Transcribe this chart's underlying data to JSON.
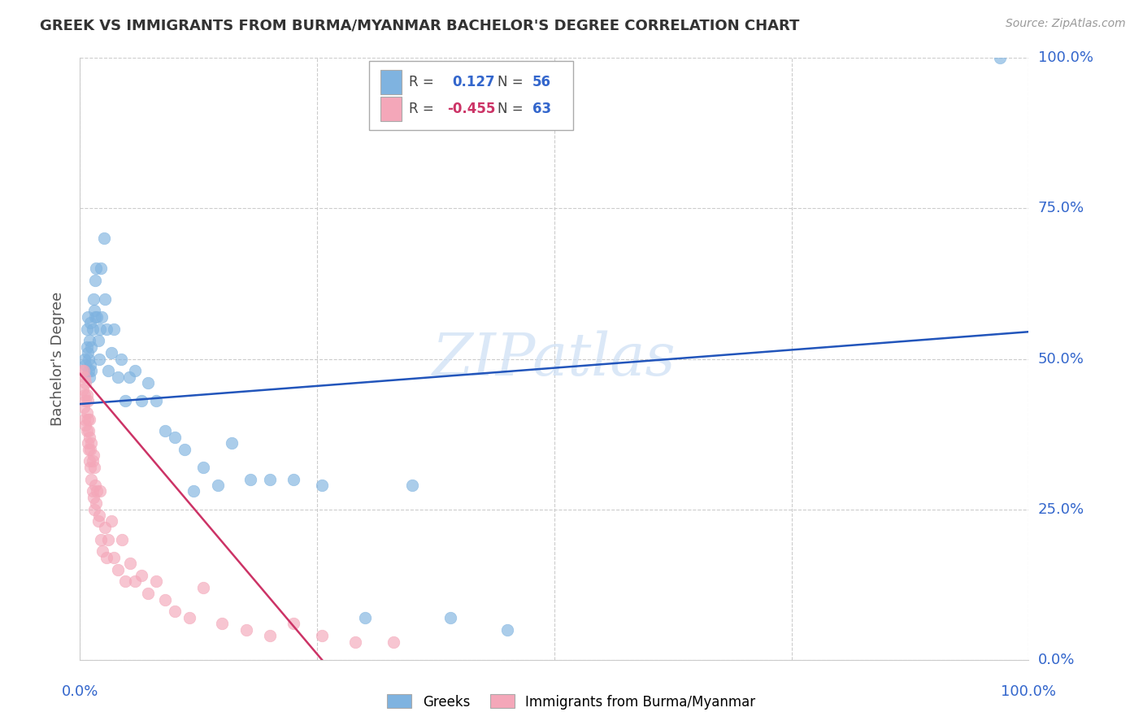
{
  "title": "GREEK VS IMMIGRANTS FROM BURMA/MYANMAR BACHELOR'S DEGREE CORRELATION CHART",
  "source": "Source: ZipAtlas.com",
  "ylabel": "Bachelor's Degree",
  "xlim": [
    0,
    1.0
  ],
  "ylim": [
    0,
    1.0
  ],
  "ytick_labels": [
    "0.0%",
    "25.0%",
    "50.0%",
    "75.0%",
    "100.0%"
  ],
  "ytick_values": [
    0.0,
    0.25,
    0.5,
    0.75,
    1.0
  ],
  "xtick_labels": [
    "0.0%",
    "100.0%"
  ],
  "xtick_values": [
    0.0,
    1.0
  ],
  "legend_label1": "Greeks",
  "legend_label2": "Immigrants from Burma/Myanmar",
  "r1": 0.127,
  "n1": 56,
  "r2": -0.455,
  "n2": 63,
  "blue_color": "#7fb3e0",
  "pink_color": "#f4a7b9",
  "line_blue": "#2255bb",
  "line_pink": "#cc3366",
  "blue_line_x": [
    0.0,
    1.0
  ],
  "blue_line_y": [
    0.425,
    0.545
  ],
  "pink_line_x": [
    0.0,
    0.255
  ],
  "pink_line_y": [
    0.475,
    0.0
  ],
  "greek_x": [
    0.005,
    0.006,
    0.007,
    0.007,
    0.008,
    0.008,
    0.009,
    0.009,
    0.01,
    0.01,
    0.011,
    0.011,
    0.012,
    0.012,
    0.013,
    0.014,
    0.015,
    0.016,
    0.016,
    0.017,
    0.018,
    0.019,
    0.02,
    0.021,
    0.022,
    0.023,
    0.025,
    0.026,
    0.028,
    0.03,
    0.033,
    0.036,
    0.04,
    0.043,
    0.048,
    0.052,
    0.058,
    0.065,
    0.072,
    0.08,
    0.09,
    0.1,
    0.11,
    0.12,
    0.13,
    0.145,
    0.16,
    0.18,
    0.2,
    0.225,
    0.255,
    0.3,
    0.35,
    0.39,
    0.45,
    0.97
  ],
  "greek_y": [
    0.5,
    0.49,
    0.52,
    0.55,
    0.51,
    0.57,
    0.48,
    0.5,
    0.53,
    0.47,
    0.56,
    0.49,
    0.52,
    0.48,
    0.55,
    0.6,
    0.58,
    0.63,
    0.57,
    0.65,
    0.57,
    0.53,
    0.5,
    0.55,
    0.65,
    0.57,
    0.7,
    0.6,
    0.55,
    0.48,
    0.51,
    0.55,
    0.47,
    0.5,
    0.43,
    0.47,
    0.48,
    0.43,
    0.46,
    0.43,
    0.38,
    0.37,
    0.35,
    0.28,
    0.32,
    0.29,
    0.36,
    0.3,
    0.3,
    0.3,
    0.29,
    0.07,
    0.29,
    0.07,
    0.05,
    1.0
  ],
  "burma_x": [
    0.002,
    0.003,
    0.004,
    0.004,
    0.005,
    0.005,
    0.005,
    0.006,
    0.006,
    0.006,
    0.007,
    0.007,
    0.007,
    0.008,
    0.008,
    0.008,
    0.009,
    0.009,
    0.01,
    0.01,
    0.01,
    0.011,
    0.011,
    0.012,
    0.012,
    0.013,
    0.013,
    0.014,
    0.014,
    0.015,
    0.015,
    0.016,
    0.017,
    0.018,
    0.019,
    0.02,
    0.021,
    0.022,
    0.024,
    0.026,
    0.028,
    0.03,
    0.033,
    0.036,
    0.04,
    0.044,
    0.048,
    0.053,
    0.058,
    0.065,
    0.072,
    0.08,
    0.09,
    0.1,
    0.115,
    0.13,
    0.15,
    0.175,
    0.2,
    0.225,
    0.255,
    0.29,
    0.33
  ],
  "burma_y": [
    0.48,
    0.45,
    0.42,
    0.48,
    0.44,
    0.4,
    0.47,
    0.43,
    0.39,
    0.46,
    0.41,
    0.38,
    0.44,
    0.4,
    0.36,
    0.43,
    0.38,
    0.35,
    0.37,
    0.33,
    0.4,
    0.35,
    0.32,
    0.36,
    0.3,
    0.33,
    0.28,
    0.34,
    0.27,
    0.32,
    0.25,
    0.29,
    0.26,
    0.28,
    0.23,
    0.24,
    0.28,
    0.2,
    0.18,
    0.22,
    0.17,
    0.2,
    0.23,
    0.17,
    0.15,
    0.2,
    0.13,
    0.16,
    0.13,
    0.14,
    0.11,
    0.13,
    0.1,
    0.08,
    0.07,
    0.12,
    0.06,
    0.05,
    0.04,
    0.06,
    0.04,
    0.03,
    0.03
  ]
}
